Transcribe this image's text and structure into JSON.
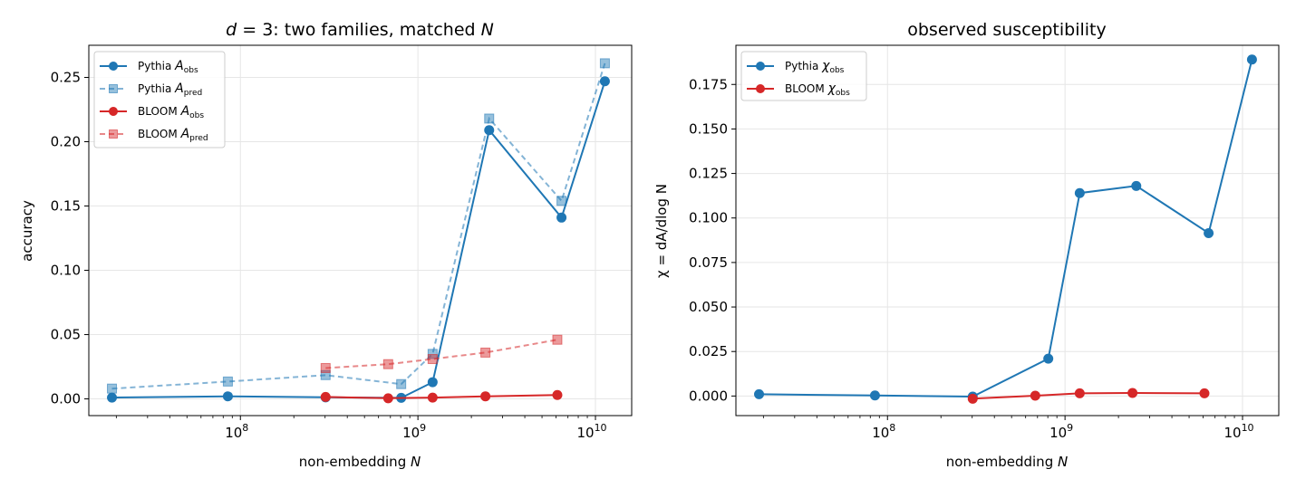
{
  "colors": {
    "pythia": "#1f77b4",
    "bloom": "#d62728"
  },
  "chart_data": [
    {
      "type": "line",
      "title": "d = 3: two families, matched N",
      "title_parts": {
        "d": "d",
        "eq": " = 3: two families, matched ",
        "N": "N"
      },
      "xlabel": "non-embedding N",
      "xlabel_parts": {
        "text": "non-embedding ",
        "var": "N"
      },
      "ylabel": "accuracy",
      "x_scale": "log",
      "xlim": [
        14000000,
        16000000000
      ],
      "ylim": [
        -0.013,
        0.275
      ],
      "x_ticks": [
        {
          "value": 100000000,
          "base": "10",
          "exp": "8"
        },
        {
          "value": 1000000000,
          "base": "10",
          "exp": "9"
        },
        {
          "value": 10000000000,
          "base": "10",
          "exp": "10"
        }
      ],
      "y_ticks": [
        {
          "value": 0.0,
          "label": "0.00"
        },
        {
          "value": 0.05,
          "label": "0.05"
        },
        {
          "value": 0.1,
          "label": "0.10"
        },
        {
          "value": 0.15,
          "label": "0.15"
        },
        {
          "value": 0.2,
          "label": "0.20"
        },
        {
          "value": 0.25,
          "label": "0.25"
        }
      ],
      "grid": true,
      "legend_position": "upper-left",
      "series": [
        {
          "name": "Pythia A_obs",
          "legend": {
            "prefix": "Pythia ",
            "sym": "A",
            "sub": "obs"
          },
          "color": "pythia",
          "dashed": false,
          "marker": "circle",
          "alpha": 1,
          "points": [
            [
              18900000,
              0.001
            ],
            [
              85000000,
              0.002
            ],
            [
              302000000,
              0.0012
            ],
            [
              805000000,
              0.0008
            ],
            [
              1210000000,
              0.013
            ],
            [
              2520000000,
              0.209
            ],
            [
              6440000000,
              0.141
            ],
            [
              11300000000,
              0.247
            ]
          ]
        },
        {
          "name": "Pythia A_pred",
          "legend": {
            "prefix": "Pythia ",
            "sym": "A",
            "sub": "pred"
          },
          "color": "pythia",
          "dashed": true,
          "marker": "square",
          "alpha": 0.55,
          "points": [
            [
              18900000,
              0.008
            ],
            [
              85000000,
              0.0135
            ],
            [
              302000000,
              0.0185
            ],
            [
              805000000,
              0.0115
            ],
            [
              1210000000,
              0.035
            ],
            [
              2520000000,
              0.218
            ],
            [
              6440000000,
              0.154
            ],
            [
              11300000000,
              0.261
            ]
          ]
        },
        {
          "name": "BLOOM A_obs",
          "legend": {
            "prefix": "BLOOM ",
            "sym": "A",
            "sub": "obs"
          },
          "color": "bloom",
          "dashed": false,
          "marker": "circle",
          "alpha": 1,
          "points": [
            [
              302000000,
              0.0015
            ],
            [
              680000000,
              0.0005
            ],
            [
              1210000000,
              0.001
            ],
            [
              2400000000,
              0.002
            ],
            [
              6100000000,
              0.003
            ]
          ]
        },
        {
          "name": "BLOOM A_pred",
          "legend": {
            "prefix": "BLOOM ",
            "sym": "A",
            "sub": "pred"
          },
          "color": "bloom",
          "dashed": true,
          "marker": "square",
          "alpha": 0.55,
          "points": [
            [
              302000000,
              0.024
            ],
            [
              680000000,
              0.027
            ],
            [
              1210000000,
              0.031
            ],
            [
              2400000000,
              0.036
            ],
            [
              6100000000,
              0.046
            ]
          ]
        }
      ]
    },
    {
      "type": "line",
      "title": "observed susceptibility",
      "xlabel": "non-embedding N",
      "xlabel_parts": {
        "text": "non-embedding ",
        "var": "N"
      },
      "ylabel": "χ = dA/dlog N",
      "x_scale": "log",
      "xlim": [
        14000000,
        16000000000
      ],
      "ylim": [
        -0.011,
        0.197
      ],
      "x_ticks": [
        {
          "value": 100000000,
          "base": "10",
          "exp": "8"
        },
        {
          "value": 1000000000,
          "base": "10",
          "exp": "9"
        },
        {
          "value": 10000000000,
          "base": "10",
          "exp": "10"
        }
      ],
      "y_ticks": [
        {
          "value": 0.0,
          "label": "0.000"
        },
        {
          "value": 0.025,
          "label": "0.025"
        },
        {
          "value": 0.05,
          "label": "0.050"
        },
        {
          "value": 0.075,
          "label": "0.075"
        },
        {
          "value": 0.1,
          "label": "0.100"
        },
        {
          "value": 0.125,
          "label": "0.125"
        },
        {
          "value": 0.15,
          "label": "0.150"
        },
        {
          "value": 0.175,
          "label": "0.175"
        }
      ],
      "grid": true,
      "legend_position": "upper-left",
      "series": [
        {
          "name": "Pythia χ_obs",
          "legend": {
            "prefix": "Pythia ",
            "sym": "χ",
            "sub": "obs"
          },
          "color": "pythia",
          "dashed": false,
          "marker": "circle",
          "alpha": 1,
          "points": [
            [
              18900000,
              0.001
            ],
            [
              85000000,
              0.0003
            ],
            [
              302000000,
              -0.0003
            ],
            [
              805000000,
              0.021
            ],
            [
              1210000000,
              0.114
            ],
            [
              2520000000,
              0.118
            ],
            [
              6440000000,
              0.0915
            ],
            [
              11300000000,
              0.189
            ]
          ]
        },
        {
          "name": "BLOOM χ_obs",
          "legend": {
            "prefix": "BLOOM ",
            "sym": "χ",
            "sub": "obs"
          },
          "color": "bloom",
          "dashed": false,
          "marker": "circle",
          "alpha": 1,
          "points": [
            [
              302000000,
              -0.0015
            ],
            [
              680000000,
              0.0002
            ],
            [
              1210000000,
              0.0015
            ],
            [
              2400000000,
              0.0017
            ],
            [
              6100000000,
              0.0015
            ]
          ]
        }
      ]
    }
  ]
}
